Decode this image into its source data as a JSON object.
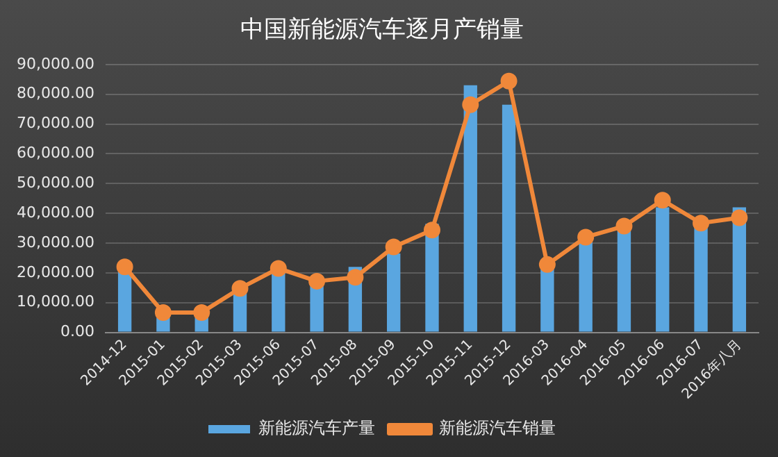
{
  "chart_data": {
    "type": "bar",
    "title": "中国新能源汽车逐月产销量",
    "categories": [
      "2014-12",
      "2015-01",
      "2015-02",
      "2015-03",
      "2015-06",
      "2015-07",
      "2015-08",
      "2015-09",
      "2015-10",
      "2015-11",
      "2015-12",
      "2016-03",
      "2016-04",
      "2016-05",
      "2016-06",
      "2016-07",
      "2016年八月"
    ],
    "series": [
      {
        "name": "新能源汽车产量",
        "color": "#5aa6e0",
        "values": [
          21500,
          5000,
          5500,
          14000,
          20000,
          16000,
          22000,
          26500,
          36500,
          83000,
          76500,
          22500,
          31000,
          34800,
          42000,
          38500,
          42000
        ]
      },
      {
        "name": "新能源汽车销量",
        "type": "line",
        "color": "#f0883a",
        "values": [
          22000,
          6700,
          6700,
          14800,
          21500,
          17200,
          18500,
          28700,
          34400,
          76500,
          84400,
          22800,
          32000,
          35700,
          44400,
          36700,
          38500
        ]
      }
    ],
    "ylim": [
      0,
      90000
    ],
    "yticks": [
      {
        "value": 0,
        "label": "0.00"
      },
      {
        "value": 10000,
        "label": "10,000.00"
      },
      {
        "value": 20000,
        "label": "20,000.00"
      },
      {
        "value": 30000,
        "label": "30,000.00"
      },
      {
        "value": 40000,
        "label": "40,000.00"
      },
      {
        "value": 50000,
        "label": "50,000.00"
      },
      {
        "value": 60000,
        "label": "60,000.00"
      },
      {
        "value": 70000,
        "label": "70,000.00"
      },
      {
        "value": 80000,
        "label": "80,000.00"
      },
      {
        "value": 90000,
        "label": "90,000.00"
      }
    ],
    "grid": "y",
    "legend": "bottom",
    "marker": "circle",
    "line_style": "solid"
  }
}
